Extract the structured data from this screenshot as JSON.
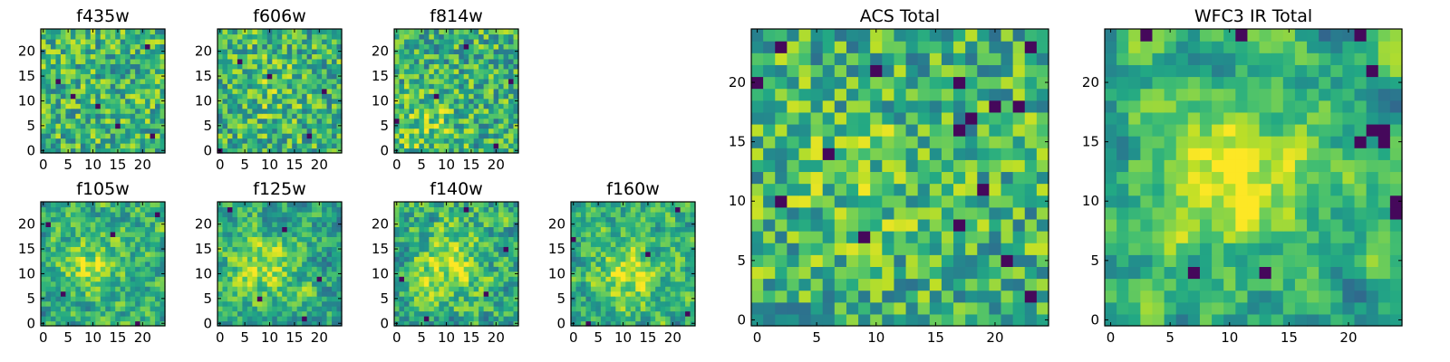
{
  "chart_data": [
    {
      "type": "heatmap",
      "title": "f435w",
      "grid_size": 25,
      "xticks": [
        0,
        5,
        10,
        15,
        20
      ],
      "yticks": [
        0,
        5,
        10,
        15,
        20
      ],
      "xlim": [
        -0.5,
        24.5
      ],
      "ylim": [
        -0.5,
        24.5
      ],
      "colormap": "viridis",
      "texture_seed": 11,
      "smoothness": 0,
      "bright_center": [
        12,
        12
      ],
      "bright_strength": 0.0,
      "dark_spots": [
        [
          6,
          11
        ],
        [
          11,
          9
        ],
        [
          22,
          3
        ],
        [
          21,
          21
        ],
        [
          3,
          14
        ],
        [
          15,
          5
        ]
      ],
      "values_note": "pixel values not labeled; random-looking noise"
    },
    {
      "type": "heatmap",
      "title": "f606w",
      "grid_size": 25,
      "xticks": [
        0,
        5,
        10,
        15,
        20
      ],
      "yticks": [
        0,
        5,
        10,
        15,
        20
      ],
      "xlim": [
        -0.5,
        24.5
      ],
      "ylim": [
        -0.5,
        24.5
      ],
      "colormap": "viridis",
      "texture_seed": 23,
      "smoothness": 0,
      "bright_center": [
        10,
        13
      ],
      "bright_strength": 0.1,
      "dark_spots": [
        [
          0,
          0
        ],
        [
          18,
          3
        ],
        [
          10,
          15
        ],
        [
          21,
          12
        ],
        [
          4,
          18
        ]
      ],
      "values_note": "pixel values not labeled"
    },
    {
      "type": "heatmap",
      "title": "f814w",
      "grid_size": 25,
      "xticks": [
        0,
        5,
        10,
        15,
        20
      ],
      "yticks": [
        0,
        5,
        10,
        15,
        20
      ],
      "xlim": [
        -0.5,
        24.5
      ],
      "ylim": [
        -0.5,
        24.5
      ],
      "colormap": "viridis",
      "texture_seed": 37,
      "smoothness": 0,
      "bright_center": [
        6,
        5
      ],
      "bright_strength": 0.15,
      "dark_spots": [
        [
          0,
          6
        ],
        [
          20,
          1
        ],
        [
          14,
          21
        ],
        [
          8,
          11
        ],
        [
          23,
          14
        ]
      ],
      "values_note": "pixel values not labeled"
    },
    {
      "type": "heatmap",
      "title": "f105w",
      "grid_size": 25,
      "xticks": [
        0,
        5,
        10,
        15,
        20
      ],
      "yticks": [
        0,
        5,
        10,
        15,
        20
      ],
      "xlim": [
        -0.5,
        24.5
      ],
      "ylim": [
        -0.5,
        24.5
      ],
      "colormap": "viridis",
      "texture_seed": 41,
      "smoothness": 1,
      "bright_center": [
        10,
        12
      ],
      "bright_strength": 0.25,
      "dark_spots": [
        [
          4,
          6
        ],
        [
          19,
          0
        ],
        [
          14,
          18
        ],
        [
          1,
          20
        ],
        [
          23,
          22
        ]
      ],
      "values_note": "pixel values not labeled"
    },
    {
      "type": "heatmap",
      "title": "f125w",
      "grid_size": 25,
      "xticks": [
        0,
        5,
        10,
        15,
        20
      ],
      "yticks": [
        0,
        5,
        10,
        15,
        20
      ],
      "xlim": [
        -0.5,
        24.5
      ],
      "ylim": [
        -0.5,
        24.5
      ],
      "colormap": "viridis",
      "texture_seed": 53,
      "smoothness": 1,
      "bright_center": [
        9,
        11
      ],
      "bright_strength": 0.25,
      "dark_spots": [
        [
          8,
          5
        ],
        [
          20,
          9
        ],
        [
          13,
          19
        ],
        [
          2,
          23
        ],
        [
          17,
          1
        ]
      ],
      "values_note": "pixel values not labeled"
    },
    {
      "type": "heatmap",
      "title": "f140w",
      "grid_size": 25,
      "xticks": [
        0,
        5,
        10,
        15,
        20
      ],
      "yticks": [
        0,
        5,
        10,
        15,
        20
      ],
      "xlim": [
        -0.5,
        24.5
      ],
      "ylim": [
        -0.5,
        24.5
      ],
      "colormap": "viridis",
      "texture_seed": 67,
      "smoothness": 1,
      "bright_center": [
        10,
        12
      ],
      "bright_strength": 0.3,
      "dark_spots": [
        [
          1,
          9
        ],
        [
          6,
          1
        ],
        [
          18,
          6
        ],
        [
          22,
          15
        ],
        [
          14,
          23
        ]
      ],
      "values_note": "pixel values not labeled"
    },
    {
      "type": "heatmap",
      "title": "f160w",
      "grid_size": 25,
      "xticks": [
        0,
        5,
        10,
        15,
        20
      ],
      "yticks": [
        0,
        5,
        10,
        15,
        20
      ],
      "xlim": [
        -0.5,
        24.5
      ],
      "ylim": [
        -0.5,
        24.5
      ],
      "colormap": "viridis",
      "texture_seed": 79,
      "smoothness": 1,
      "bright_center": [
        11,
        10
      ],
      "bright_strength": 0.3,
      "dark_spots": [
        [
          3,
          0
        ],
        [
          0,
          17
        ],
        [
          21,
          23
        ],
        [
          23,
          2
        ],
        [
          15,
          14
        ]
      ],
      "values_note": "pixel values not labeled"
    },
    {
      "type": "heatmap",
      "title": "ACS Total",
      "grid_size": 25,
      "xticks": [
        0,
        5,
        10,
        15,
        20
      ],
      "yticks": [
        0,
        5,
        10,
        15,
        20
      ],
      "xlim": [
        -0.5,
        24.5
      ],
      "ylim": [
        -0.5,
        24.5
      ],
      "colormap": "viridis",
      "texture_seed": 97,
      "smoothness": 0,
      "bright_center": [
        8,
        12
      ],
      "bright_strength": 0.1,
      "dark_spots": [
        [
          0,
          20
        ],
        [
          2,
          23
        ],
        [
          10,
          21
        ],
        [
          17,
          20
        ],
        [
          23,
          23
        ],
        [
          22,
          18
        ],
        [
          20,
          18
        ],
        [
          18,
          17
        ],
        [
          17,
          16
        ],
        [
          6,
          14
        ],
        [
          19,
          11
        ],
        [
          2,
          10
        ],
        [
          9,
          7
        ],
        [
          23,
          2
        ],
        [
          21,
          5
        ],
        [
          17,
          8
        ]
      ],
      "values_note": "pixel values not labeled"
    },
    {
      "type": "heatmap",
      "title": "WFC3 IR Total",
      "grid_size": 25,
      "xticks": [
        0,
        5,
        10,
        15,
        20
      ],
      "yticks": [
        0,
        5,
        10,
        15,
        20
      ],
      "xlim": [
        -0.5,
        24.5
      ],
      "ylim": [
        -0.5,
        24.5
      ],
      "colormap": "viridis",
      "texture_seed": 113,
      "smoothness": 2,
      "bright_center": [
        10,
        12
      ],
      "bright_strength": 0.35,
      "dark_spots": [
        [
          3,
          24
        ],
        [
          11,
          24
        ],
        [
          21,
          24
        ],
        [
          22,
          16
        ],
        [
          23,
          15
        ],
        [
          23,
          16
        ],
        [
          21,
          15
        ],
        [
          24,
          9
        ],
        [
          24,
          10
        ],
        [
          13,
          4
        ],
        [
          7,
          4
        ],
        [
          22,
          21
        ]
      ],
      "values_note": "pixel values not labeled"
    }
  ]
}
